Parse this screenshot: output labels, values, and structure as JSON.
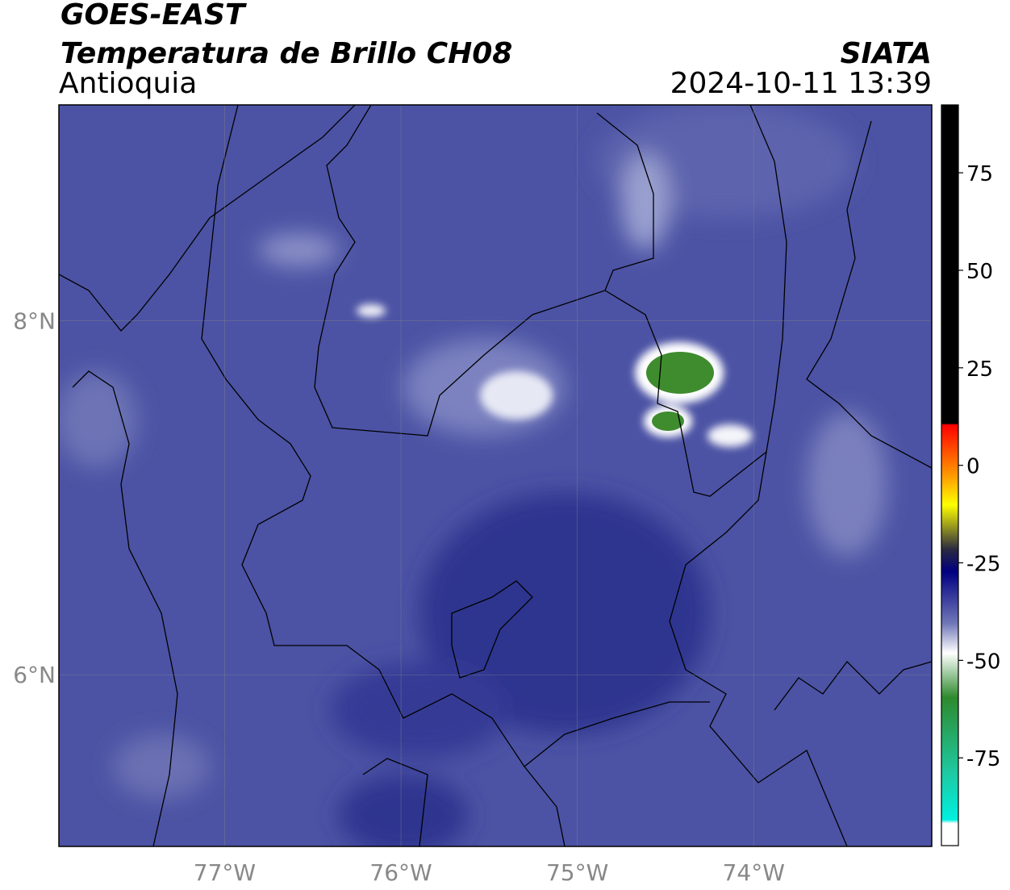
{
  "header": {
    "title": "GOES-EAST",
    "subtitle": "Temperatura de Brillo CH08",
    "region": "Antioquia",
    "source": "SIATA",
    "datetime": "2024-10-11 13:39"
  },
  "map": {
    "xlim": [
      -77.94,
      -72.99
    ],
    "ylim": [
      5.03,
      9.22
    ],
    "xticks": [
      {
        "value": -77,
        "label": "77°W"
      },
      {
        "value": -76,
        "label": "76°W"
      },
      {
        "value": -75,
        "label": "75°W"
      },
      {
        "value": -74,
        "label": "74°W"
      }
    ],
    "yticks": [
      {
        "value": 6,
        "label": "6°N"
      },
      {
        "value": 8,
        "label": "8°N"
      }
    ],
    "grid": true
  },
  "colorbar": {
    "lim": [
      -97.5,
      92.4
    ],
    "ticks": [
      75,
      50,
      25,
      0,
      -25,
      -50,
      -75
    ]
  }
}
